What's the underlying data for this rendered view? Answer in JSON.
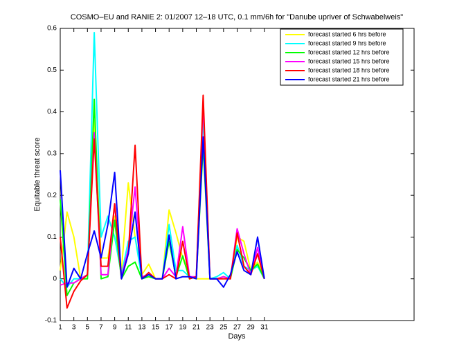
{
  "chart_data": {
    "type": "line",
    "title": "COSMO–EU and RANIE 2: 01/2007 12–18 UTC, 0.1 mm/6h for \"Danube upriver of Schwabelweis\"",
    "x_label": "Days",
    "y_label": "Equitable threat score",
    "x": [
      1,
      2,
      3,
      4,
      5,
      6,
      7,
      8,
      9,
      10,
      11,
      12,
      13,
      14,
      15,
      16,
      17,
      18,
      19,
      20,
      21,
      22,
      23,
      24,
      25,
      26,
      27,
      28,
      29,
      30,
      31
    ],
    "xlim": [
      1,
      53
    ],
    "xticks": [
      1,
      3,
      5,
      7,
      9,
      11,
      13,
      15,
      17,
      19,
      21,
      23,
      25,
      27,
      29,
      31
    ],
    "ylim": [
      -0.1,
      0.6
    ],
    "yticks": [
      -0.1,
      0,
      0.1,
      0.2,
      0.3,
      0.4,
      0.5,
      0.6
    ],
    "grid": false,
    "legend": "upper right",
    "series": [
      {
        "name": "forecast started 6 hrs before",
        "color": "#ffff00",
        "values": [
          0.02,
          0.16,
          0.1,
          0,
          0.01,
          0.38,
          0.05,
          0.05,
          0.15,
          0.02,
          0.23,
          0.1,
          0.01,
          0.035,
          0,
          0,
          0.165,
          0.11,
          0.05,
          0.005,
          0,
          0,
          0,
          0,
          0.005,
          0,
          0.1,
          0.09,
          0.02,
          0.04,
          0
        ]
      },
      {
        "name": "forecast started 9 hrs before",
        "color": "#00ffff",
        "values": [
          0,
          -0.02,
          0,
          0,
          0.01,
          0.59,
          0.1,
          0.15,
          0.1,
          0.01,
          0.09,
          0.1,
          0,
          0.01,
          0,
          0,
          0.13,
          0.02,
          0.02,
          0.005,
          0,
          0.39,
          0,
          0.005,
          0.015,
          0,
          0.08,
          0.03,
          0.02,
          0.03,
          0
        ]
      },
      {
        "name": "forecast started 12 hrs before",
        "color": "#00ff00",
        "values": [
          0.19,
          -0.04,
          -0.01,
          0,
          0,
          0.43,
          0,
          0.005,
          0.14,
          0,
          0.03,
          0.04,
          0,
          0.005,
          0,
          0,
          0.09,
          0.005,
          0.055,
          0,
          0.005,
          0.32,
          0,
          0,
          0.005,
          0,
          0.07,
          0.05,
          0.02,
          0.035,
          0
        ]
      },
      {
        "name": "forecast started 15 hrs before",
        "color": "#ff00ff",
        "values": [
          -0.015,
          -0.01,
          -0.01,
          0,
          0.01,
          0.35,
          0.01,
          0.01,
          0.18,
          0.005,
          0.07,
          0.22,
          0.005,
          0.01,
          0,
          0,
          0.025,
          0.005,
          0.125,
          0.005,
          0.005,
          0.42,
          0,
          0,
          0.005,
          0,
          0.12,
          0.06,
          0.01,
          0.075,
          0
        ]
      },
      {
        "name": "forecast started 18 hrs before",
        "color": "#ff0000",
        "values": [
          0.1,
          -0.07,
          -0.03,
          -0.005,
          0.01,
          0.335,
          0.03,
          0.03,
          0.18,
          0,
          0.06,
          0.32,
          0,
          0.015,
          0,
          0,
          0.01,
          0,
          0.09,
          0,
          0.005,
          0.44,
          0,
          0,
          0,
          0,
          0.11,
          0.03,
          0.01,
          0.06,
          0
        ]
      },
      {
        "name": "forecast started 21 hrs before",
        "color": "#0000ff",
        "values": [
          0.26,
          -0.02,
          0.025,
          0,
          0.06,
          0.115,
          0.05,
          0.13,
          0.255,
          0,
          0.06,
          0.16,
          0,
          0.01,
          0,
          0,
          0.105,
          0,
          0.005,
          0.005,
          0,
          0.34,
          0,
          0,
          -0.02,
          0.01,
          0.065,
          0.02,
          0.01,
          0.1,
          0
        ]
      }
    ]
  }
}
